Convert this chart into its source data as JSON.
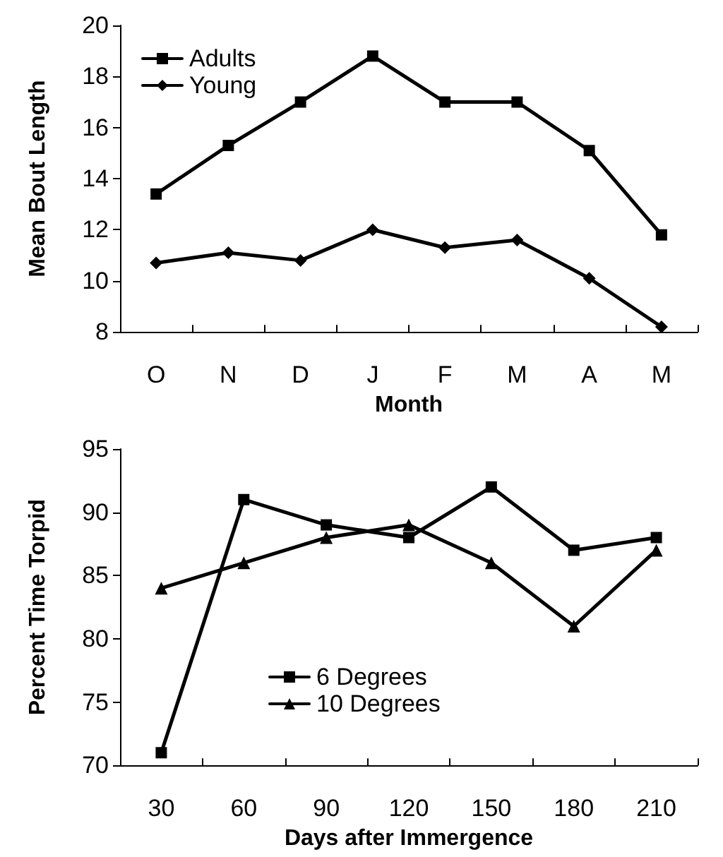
{
  "chart_data": [
    {
      "type": "line",
      "xlabel": "Month",
      "ylabel": "Mean Bout Length",
      "categories": [
        "O",
        "N",
        "D",
        "J",
        "F",
        "M",
        "A",
        "M"
      ],
      "series": [
        {
          "name": "Adults",
          "color": "#000000",
          "marker": "square",
          "values": [
            13.4,
            15.3,
            17,
            18.8,
            17,
            17,
            15.1,
            11.8
          ]
        },
        {
          "name": "Young",
          "color": "#000000",
          "marker": "diamond",
          "values": [
            10.7,
            11.1,
            10.8,
            12,
            11.3,
            11.6,
            10.1,
            8.2
          ]
        }
      ],
      "ylim": [
        8,
        20
      ],
      "yticks": [
        8,
        10,
        12,
        14,
        16,
        18,
        20
      ],
      "grid": false,
      "legend": "top left",
      "line_style": "solid"
    },
    {
      "type": "line",
      "xlabel": "Days after Immergence",
      "ylabel": "Percent Time Torpid",
      "categories": [
        "30",
        "60",
        "90",
        "120",
        "150",
        "180",
        "210"
      ],
      "series": [
        {
          "name": "6 Degrees",
          "color": "#000000",
          "marker": "square",
          "values": [
            71,
            91,
            89,
            88,
            92,
            87,
            88
          ]
        },
        {
          "name": "10 Degrees",
          "color": "#000000",
          "marker": "triangle",
          "values": [
            84,
            86,
            88,
            89,
            86,
            81,
            87
          ]
        }
      ],
      "ylim": [
        70,
        95
      ],
      "yticks": [
        70,
        75,
        80,
        85,
        90,
        95
      ],
      "grid": false,
      "legend": "bottom",
      "line_style": "solid"
    }
  ]
}
